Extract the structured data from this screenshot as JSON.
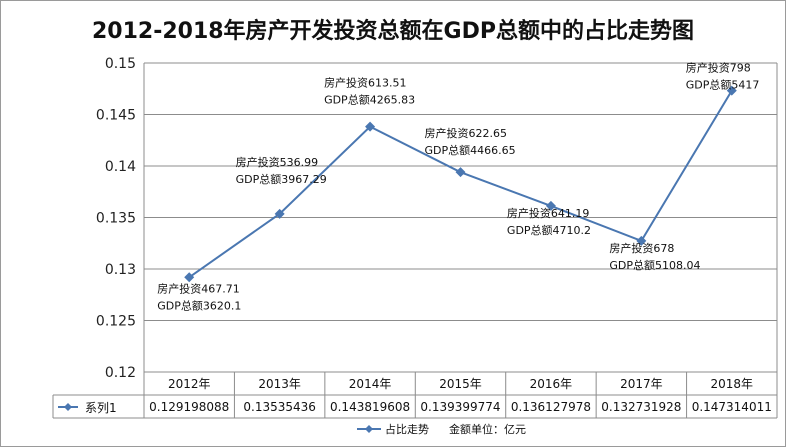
{
  "chart_data": {
    "type": "line",
    "title": "2012-2018年房产开发投资总额在GDP总额中的占比走势图",
    "categories": [
      "2012年",
      "2013年",
      "2014年",
      "2015年",
      "2016年",
      "2017年",
      "2018年"
    ],
    "series": [
      {
        "name": "系列1",
        "values": [
          0.129198088,
          0.13535436,
          0.143819608,
          0.139399774,
          0.136127978,
          0.132731928,
          0.147314011
        ],
        "color": "#4a77b1"
      }
    ],
    "y_ticks": [
      "0.15",
      "0.145",
      "0.14",
      "0.135",
      "0.13",
      "0.125",
      "0.12"
    ],
    "ylim": [
      0.12,
      0.15
    ],
    "grid": true,
    "data_table": true,
    "table_values": [
      "0.129198088",
      "0.13535436",
      "0.143819608",
      "0.139399774",
      "0.136127978",
      "0.132731928",
      "0.147314011"
    ],
    "annotations": [
      {
        "line1": "房产投资467.71",
        "line2": "GDP总额3620.1"
      },
      {
        "line1": "房产投资536.99",
        "line2": "GDP总额3967.29"
      },
      {
        "line1": "房产投资613.51",
        "line2": "GDP总额4265.83"
      },
      {
        "line1": "房产投资622.65",
        "line2": "GDP总额4466.65"
      },
      {
        "line1": "房产投资641.19",
        "line2": "GDP总额4710.2"
      },
      {
        "line1": "房产投资678",
        "line2": "GDP总额5108.04"
      },
      {
        "line1": "房产投资798",
        "line2": "GDP总额5417"
      }
    ],
    "legend": {
      "series_label": "占比走势",
      "unit_note": "金额单位：亿元",
      "placement": "bottom"
    }
  }
}
